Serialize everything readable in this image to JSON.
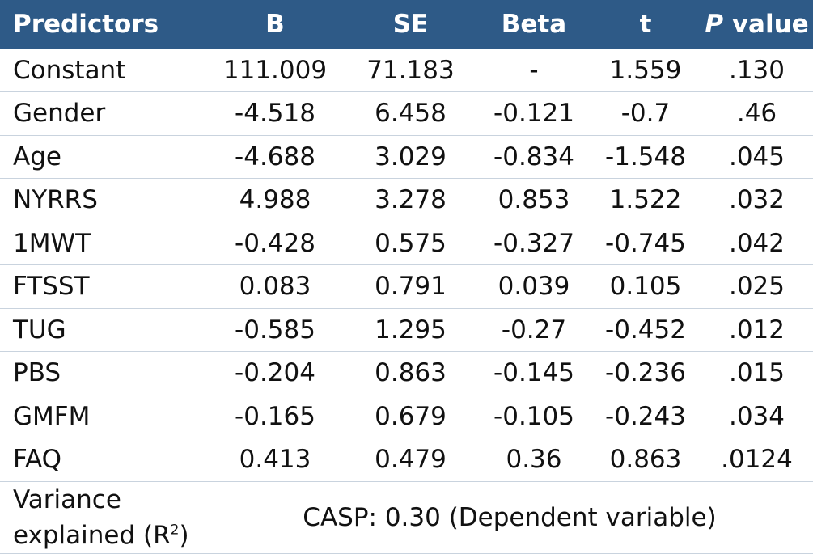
{
  "header": {
    "predictors": "Predictors",
    "b": "B",
    "se": "SE",
    "beta": "Beta",
    "t": "t",
    "p_italic": "P",
    "p_rest": " value"
  },
  "rows": [
    {
      "name": "Constant",
      "b": "111.009",
      "se": "71.183",
      "beta": "-",
      "t": "1.559",
      "p": ".130"
    },
    {
      "name": "Gender",
      "b": "-4.518",
      "se": "6.458",
      "beta": "-0.121",
      "t": "-0.7",
      "p": ".46"
    },
    {
      "name": "Age",
      "b": "-4.688",
      "se": "3.029",
      "beta": "-0.834",
      "t": "-1.548",
      "p": ".045"
    },
    {
      "name": "NYRRS",
      "b": "4.988",
      "se": "3.278",
      "beta": "0.853",
      "t": "1.522",
      "p": ".032"
    },
    {
      "name": "1MWT",
      "b": "-0.428",
      "se": "0.575",
      "beta": "-0.327",
      "t": "-0.745",
      "p": ".042"
    },
    {
      "name": "FTSST",
      "b": "0.083",
      "se": "0.791",
      "beta": "0.039",
      "t": "0.105",
      "p": ".025"
    },
    {
      "name": "TUG",
      "b": "-0.585",
      "se": "1.295",
      "beta": "-0.27",
      "t": "-0.452",
      "p": ".012"
    },
    {
      "name": "PBS",
      "b": "-0.204",
      "se": "0.863",
      "beta": "-0.145",
      "t": "-0.236",
      "p": ".015"
    },
    {
      "name": "GMFM",
      "b": "-0.165",
      "se": "0.679",
      "beta": "-0.105",
      "t": "-0.243",
      "p": ".034"
    },
    {
      "name": "FAQ",
      "b": "0.413",
      "se": "0.479",
      "beta": "0.36",
      "t": "0.863",
      "p": ".0124"
    }
  ],
  "footer": {
    "label_line1": "Variance",
    "label_line2": "explained (R",
    "label_sup": "2",
    "label_close": ")",
    "value": "CASP: 0.30  (Dependent variable)"
  },
  "colors": {
    "header_bg": "#2e5a87",
    "header_text": "#ffffff",
    "row_border": "#c9d3de"
  }
}
